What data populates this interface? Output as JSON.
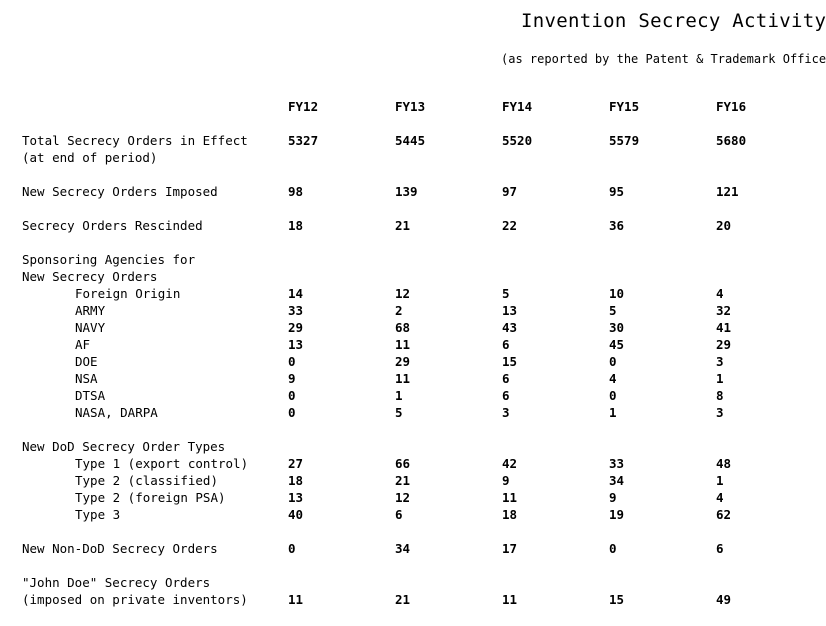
{
  "title": "Invention Secrecy Activity",
  "subtitle": "(as reported by the Patent & Trademark Office)",
  "years": [
    "FY12",
    "FY13",
    "FY14",
    "FY15",
    "FY16"
  ],
  "rows": [
    {
      "kind": "main",
      "label": "Total Secrecy Orders in Effect",
      "values": [
        "5327",
        "5445",
        "5520",
        "5579",
        "5680"
      ]
    },
    {
      "kind": "cont",
      "label": "(at end of period)"
    },
    {
      "kind": "main",
      "label": "New Secrecy Orders Imposed",
      "values": [
        "98",
        "139",
        "97",
        "95",
        "121"
      ]
    },
    {
      "kind": "main",
      "label": "Secrecy Orders Rescinded",
      "values": [
        "18",
        "21",
        "22",
        "36",
        "20"
      ]
    },
    {
      "kind": "main",
      "label": "Sponsoring Agencies for"
    },
    {
      "kind": "cont",
      "label": "New Secrecy Orders"
    },
    {
      "kind": "sub",
      "label": "Foreign Origin",
      "values": [
        "14",
        "12",
        "5",
        "10",
        "4"
      ]
    },
    {
      "kind": "sub",
      "label": "ARMY",
      "values": [
        "33",
        "2",
        "13",
        "5",
        "32"
      ]
    },
    {
      "kind": "sub",
      "label": "NAVY",
      "values": [
        "29",
        "68",
        "43",
        "30",
        "41"
      ]
    },
    {
      "kind": "sub",
      "label": "AF",
      "values": [
        "13",
        "11",
        "6",
        "45",
        "29"
      ]
    },
    {
      "kind": "sub",
      "label": "DOE",
      "values": [
        "0",
        "29",
        "15",
        "0",
        "3"
      ]
    },
    {
      "kind": "sub",
      "label": "NSA",
      "values": [
        "9",
        "11",
        "6",
        "4",
        "1"
      ]
    },
    {
      "kind": "sub",
      "label": "DTSA",
      "values": [
        "0",
        "1",
        "6",
        "0",
        "8"
      ]
    },
    {
      "kind": "sub",
      "label": "NASA, DARPA",
      "values": [
        "0",
        "5",
        "3",
        "1",
        "3"
      ]
    },
    {
      "kind": "main",
      "label": "New DoD Secrecy Order Types"
    },
    {
      "kind": "sub",
      "label": "Type 1 (export control)",
      "values": [
        "27",
        "66",
        "42",
        "33",
        "48"
      ]
    },
    {
      "kind": "sub",
      "label": "Type 2 (classified)",
      "values": [
        "18",
        "21",
        "9",
        "34",
        "1"
      ]
    },
    {
      "kind": "sub",
      "label": "Type 2 (foreign PSA)",
      "values": [
        "13",
        "12",
        "11",
        "9",
        "4"
      ]
    },
    {
      "kind": "sub",
      "label": "Type 3",
      "values": [
        "40",
        "6",
        "18",
        "19",
        "62"
      ]
    },
    {
      "kind": "main",
      "label": "New Non-DoD Secrecy Orders",
      "values": [
        "0",
        "34",
        "17",
        "0",
        "6"
      ]
    },
    {
      "kind": "main",
      "label": "\"John Doe\" Secrecy Orders"
    },
    {
      "kind": "cont",
      "label": "(imposed on private inventors)",
      "values": [
        "11",
        "21",
        "11",
        "15",
        "49"
      ]
    }
  ]
}
